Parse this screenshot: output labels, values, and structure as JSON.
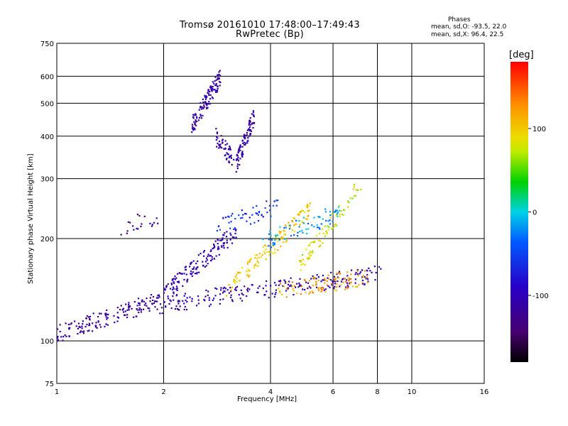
{
  "chart_data": {
    "type": "scatter",
    "title": "Tromsø 20161010 17:48:00–17:49:43",
    "subtitle": "RwPretec (Bp)",
    "xlabel": "Frequency [MHz]",
    "ylabel": "Stationary phase Virtual Height [km]",
    "x_scale": "log",
    "y_scale": "log",
    "xlim": [
      1,
      16
    ],
    "ylim": [
      75,
      750
    ],
    "x_ticks": [
      1,
      2,
      4,
      6,
      8,
      10,
      16
    ],
    "y_ticks": [
      75,
      100,
      200,
      300,
      400,
      500,
      600,
      750
    ],
    "grid": true,
    "phases": {
      "heading": "Phases",
      "o_line": "mean, sd,O: -93.5, 22.0",
      "x_line": "mean, sd,X:  96.4, 22.5"
    },
    "colorbar": {
      "unit": "[deg]",
      "range": [
        -180,
        180
      ],
      "ticks": [
        100,
        0,
        -100
      ],
      "colormap": "rainbow"
    },
    "series": [
      {
        "values": [
          {
            "f_start": 1.0,
            "f_end": 1.95,
            "h_start": 105,
            "h_end": 132,
            "phase": -120,
            "n": 160
          },
          {
            "f_start": 1.95,
            "f_end": 8.2,
            "h_start": 128,
            "h_end": 158,
            "phase": -110,
            "n": 230
          },
          {
            "f_start": 2.0,
            "f_end": 3.2,
            "h_start": 138,
            "h_end": 210,
            "phase": -105,
            "n": 150
          },
          {
            "f_start": 2.4,
            "f_end": 2.9,
            "h_start": 430,
            "h_end": 600,
            "phase": -110,
            "n": 120
          },
          {
            "f_start": 2.8,
            "f_end": 3.15,
            "h_start": 400,
            "h_end": 340,
            "phase": -115,
            "n": 50
          },
          {
            "f_start": 3.2,
            "f_end": 3.6,
            "h_start": 330,
            "h_end": 460,
            "phase": -115,
            "n": 90
          },
          {
            "f_start": 3.0,
            "f_end": 5.2,
            "h_start": 140,
            "h_end": 245,
            "phase": 100,
            "n": 130
          },
          {
            "f_start": 4.2,
            "f_end": 7.6,
            "h_start": 140,
            "h_end": 155,
            "phase": 120,
            "n": 90
          },
          {
            "f_start": 4.8,
            "f_end": 7.2,
            "h_start": 165,
            "h_end": 290,
            "phase": 80,
            "n": 80
          },
          {
            "f_start": 3.8,
            "f_end": 6.3,
            "h_start": 195,
            "h_end": 240,
            "phase": -20,
            "n": 70
          },
          {
            "f_start": 2.8,
            "f_end": 4.2,
            "h_start": 215,
            "h_end": 250,
            "phase": -60,
            "n": 50
          },
          {
            "f_start": 1.5,
            "f_end": 1.95,
            "h_start": 215,
            "h_end": 235,
            "phase": -130,
            "n": 20
          }
        ]
      }
    ]
  }
}
